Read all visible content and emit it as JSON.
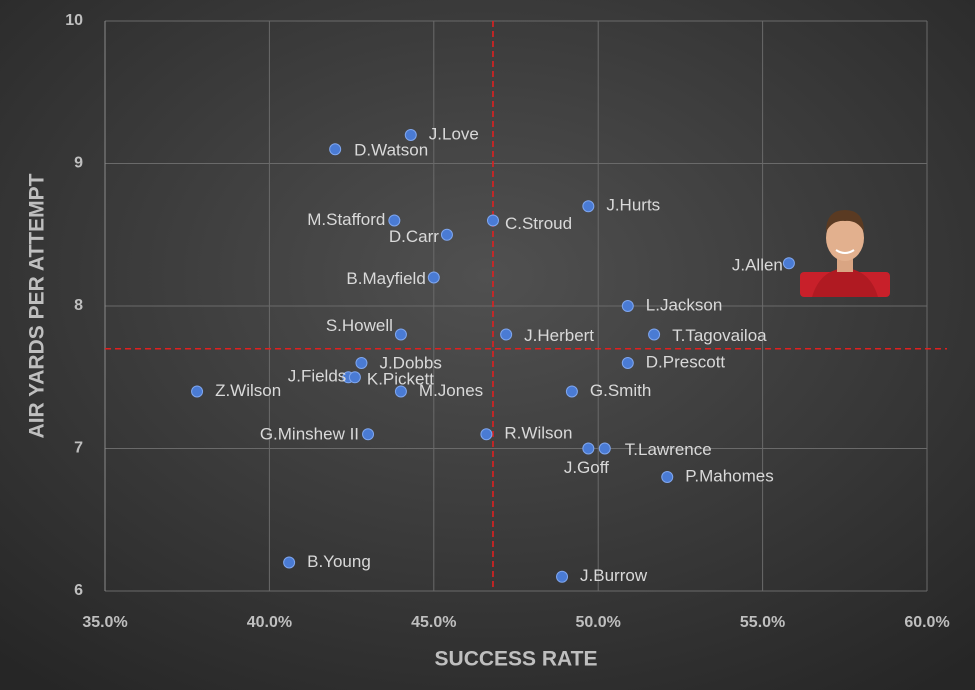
{
  "chart_data": {
    "type": "scatter",
    "xlabel": "SUCCESS RATE",
    "ylabel": "AIR YARDS PER ATTEMPT",
    "xlim": [
      35,
      60
    ],
    "ylim": [
      6,
      10
    ],
    "xticks": [
      {
        "value": 35,
        "label": "35.0%"
      },
      {
        "value": 40,
        "label": "40.0%"
      },
      {
        "value": 45,
        "label": "45.0%"
      },
      {
        "value": 50,
        "label": "50.0%"
      },
      {
        "value": 55,
        "label": "55.0%"
      },
      {
        "value": 60,
        "label": "60.0%"
      }
    ],
    "yticks": [
      6,
      7,
      8,
      9,
      10
    ],
    "grid": true,
    "color": "#4a7bd4",
    "reference_lines": {
      "x": 46.8,
      "y": 7.7,
      "color": "#e02020"
    },
    "points": {
      "names": [
        "J.Love",
        "D.Watson",
        "M.Stafford",
        "D.Carr",
        "C.Stroud",
        "J.Hurts",
        "J.Allen",
        "B.Mayfield",
        "L.Jackson",
        "S.Howell",
        "J.Herbert",
        "T.Tagovailoa",
        "J.Dobbs",
        "D.Prescott",
        "J.Fields",
        "K.Pickett",
        "Z.Wilson",
        "M.Jones",
        "G.Smith",
        "G.Minshew II",
        "R.Wilson",
        "J.Goff",
        "T.Lawrence",
        "P.Mahomes",
        "B.Young",
        "J.Burrow"
      ],
      "x": [
        44.3,
        42.0,
        43.8,
        45.4,
        46.8,
        49.7,
        55.8,
        45.0,
        50.9,
        44.0,
        47.2,
        51.7,
        42.8,
        50.9,
        42.4,
        42.6,
        37.8,
        44.0,
        49.2,
        43.0,
        46.6,
        49.7,
        50.2,
        52.1,
        40.6,
        48.9
      ],
      "y": [
        9.2,
        9.1,
        8.6,
        8.5,
        8.6,
        8.7,
        8.3,
        8.2,
        8.0,
        7.8,
        7.8,
        7.8,
        7.6,
        7.6,
        7.5,
        7.5,
        7.4,
        7.4,
        7.4,
        7.1,
        7.1,
        7.0,
        7.0,
        6.8,
        6.2,
        6.1
      ]
    }
  }
}
